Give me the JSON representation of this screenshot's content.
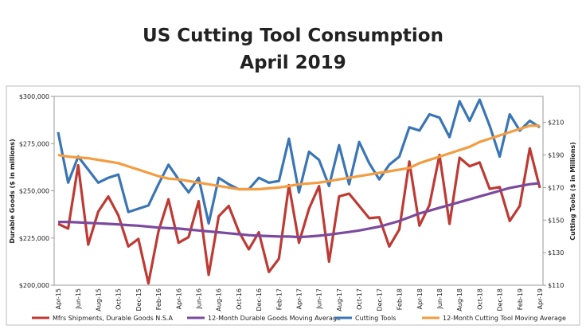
{
  "chart_data": {
    "type": "line",
    "title": "US Cutting Tool Consumption",
    "subtitle": "April 2019",
    "y_label": "Durable Goods ($ in millions)",
    "y2_label": "Cutting Tools ($ in Millions)",
    "categories": [
      "Apr-15",
      null,
      "Jun-15",
      null,
      "Aug-15",
      null,
      "Oct-15",
      null,
      "Dec-15",
      null,
      "Feb-16",
      null,
      "Apr-16",
      null,
      "Jun-16",
      null,
      "Aug-16",
      null,
      "Oct-16",
      null,
      "Dec-16",
      null,
      "Feb-17",
      null,
      "Apr-17",
      null,
      "Jun-17",
      null,
      "Aug-17",
      null,
      "Oct-17",
      null,
      "Dec-17",
      null,
      "Feb-18",
      null,
      "Apr-18",
      null,
      "Jun-18",
      null,
      "Aug-18",
      null,
      "Oct-18",
      null,
      "Dec-18",
      null,
      "Feb-19",
      null,
      "Apr-19"
    ],
    "ylim": [
      200000,
      300000
    ],
    "yticks": [
      {
        "value": 200000,
        "label": "$200,000"
      },
      {
        "value": 225000,
        "label": "$225,000"
      },
      {
        "value": 250000,
        "label": "$250,000"
      },
      {
        "value": 275000,
        "label": "$275,000"
      },
      {
        "value": 300000,
        "label": "$300,000"
      }
    ],
    "y2lim": [
      110,
      226
    ],
    "y2ticks": [
      {
        "value": 110,
        "label": "$110"
      },
      {
        "value": 130,
        "label": "$130"
      },
      {
        "value": 150,
        "label": "$150"
      },
      {
        "value": 170,
        "label": "$170"
      },
      {
        "value": 190,
        "label": "$190"
      },
      {
        "value": 210,
        "label": "$210"
      }
    ],
    "grid": false,
    "legend": "bottom",
    "series": [
      {
        "name": "Mfrs Shipments, Durable Goods N.S.A",
        "color": "#be3a34",
        "values": [
          232500,
          230000,
          263500,
          221500,
          239000,
          247000,
          237000,
          220500,
          224500,
          201000,
          228500,
          245500,
          222500,
          225500,
          244500,
          205500,
          236500,
          242000,
          228500,
          219000,
          228000,
          207000,
          214000,
          253000,
          222500,
          240500,
          252500,
          212500,
          247000,
          248500,
          242000,
          235500,
          236000,
          220500,
          229500,
          265500,
          231500,
          242500,
          269000,
          232500,
          267500,
          263000,
          265000,
          251000,
          252000,
          234000,
          242000,
          272500,
          251500
        ]
      },
      {
        "name": "12-Month Durable Goods Moving Average",
        "color": "#7b4a9e",
        "values": [
          233500,
          233500,
          233300,
          233000,
          232800,
          232500,
          232200,
          231800,
          231500,
          231000,
          230500,
          230200,
          230000,
          229500,
          229000,
          228500,
          228000,
          227500,
          227000,
          226500,
          226200,
          226000,
          225800,
          225800,
          225500,
          225800,
          226200,
          226800,
          227500,
          228200,
          229000,
          230000,
          231000,
          232500,
          234000,
          236000,
          238000,
          239500,
          241000,
          242500,
          244000,
          245500,
          247000,
          248500,
          250000,
          251500,
          252500,
          253500,
          254000
        ]
      },
      {
        "name": "Cutting Tools",
        "color": "#3a75b5",
        "axis": "y2",
        "values": [
          204,
          173,
          189,
          181,
          173,
          176,
          178,
          155,
          157,
          159,
          172,
          184,
          175,
          167,
          176,
          148,
          176,
          172,
          169,
          169,
          176,
          173,
          174,
          200,
          167,
          192,
          187,
          171,
          196,
          172,
          198,
          185,
          175,
          184,
          189,
          207,
          205,
          215,
          213,
          201,
          223,
          211,
          224,
          208,
          189,
          215,
          205,
          211,
          207
        ]
      },
      {
        "name": "12-Month Cutting Tool Moving Average",
        "color": "#f39c40",
        "axis": "y2",
        "values": [
          190,
          189,
          188.5,
          188,
          187,
          186,
          185,
          183,
          181,
          179,
          177,
          175.5,
          175,
          174,
          173,
          172,
          171,
          170,
          169,
          169,
          169,
          169.5,
          170,
          171,
          172,
          172.5,
          173,
          174,
          175,
          176,
          177,
          178,
          179,
          180,
          181,
          182,
          185,
          187,
          189,
          191,
          193,
          195,
          198,
          200,
          202,
          204,
          206,
          208,
          208
        ]
      }
    ]
  }
}
